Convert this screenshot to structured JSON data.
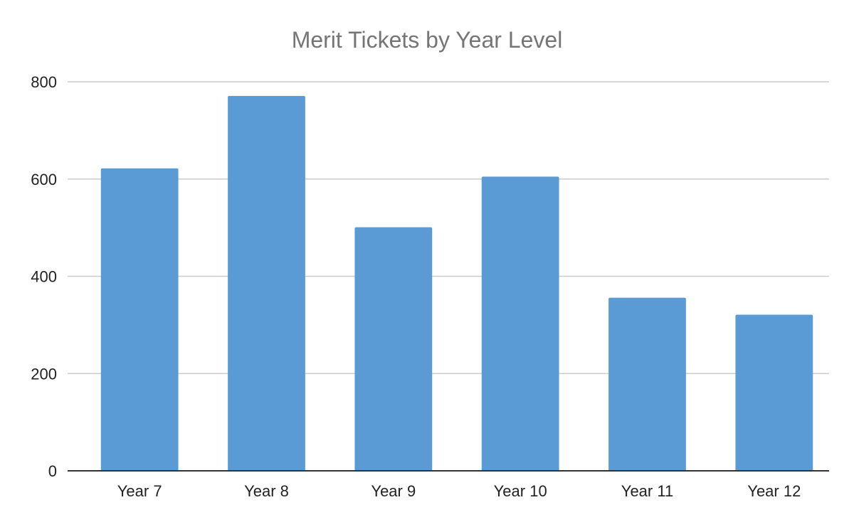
{
  "chart_data": {
    "type": "bar",
    "title": "Merit Tickets by Year Level",
    "xlabel": "",
    "ylabel": "",
    "categories": [
      "Year 7",
      "Year 8",
      "Year 9",
      "Year 10",
      "Year 11",
      "Year 12"
    ],
    "values": [
      622,
      771,
      501,
      605,
      356,
      321
    ],
    "ylim": [
      0,
      800
    ],
    "yticks": [
      0,
      200,
      400,
      600,
      800
    ],
    "grid": true,
    "legend": "none",
    "colors": {
      "bar": "#5b9bd5"
    }
  }
}
